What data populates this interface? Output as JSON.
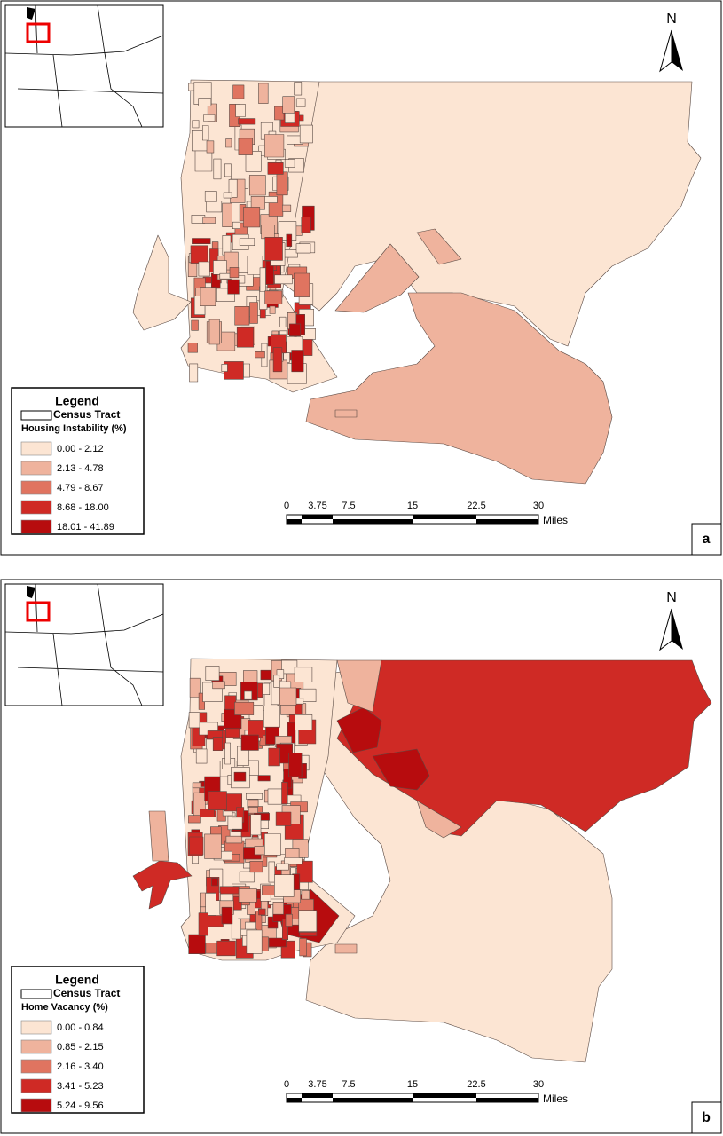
{
  "panels": [
    {
      "label": "a",
      "north": "N",
      "legend": {
        "title": "Legend",
        "tract": "Census Tract",
        "variable": "Housing Instability (%)",
        "classes": [
          {
            "range": "0.00 - 2.12",
            "color": "#fce5d3"
          },
          {
            "range": "2.13 - 4.78",
            "color": "#efb39d"
          },
          {
            "range": "4.79 - 8.67",
            "color": "#e07460"
          },
          {
            "range": "8.68 - 18.00",
            "color": "#cf2a25"
          },
          {
            "range": "18.01 - 41.89",
            "color": "#b70c0e"
          }
        ]
      },
      "scale": {
        "ticks": [
          "0",
          "3.75",
          "7.5",
          "15",
          "22.5",
          "30"
        ],
        "unit": "Miles"
      }
    },
    {
      "label": "b",
      "north": "N",
      "legend": {
        "title": "Legend",
        "tract": "Census Tract",
        "variable": "Home Vacancy (%)",
        "classes": [
          {
            "range": "0.00 - 0.84",
            "color": "#fce5d3"
          },
          {
            "range": "0.85 - 2.15",
            "color": "#efb39d"
          },
          {
            "range": "2.16 - 3.40",
            "color": "#e07460"
          },
          {
            "range": "3.41 - 5.23",
            "color": "#cf2a25"
          },
          {
            "range": "5.24 - 9.56",
            "color": "#b70c0e"
          }
        ]
      },
      "scale": {
        "ticks": [
          "0",
          "3.75",
          "7.5",
          "15",
          "22.5",
          "30"
        ],
        "unit": "Miles"
      }
    }
  ]
}
